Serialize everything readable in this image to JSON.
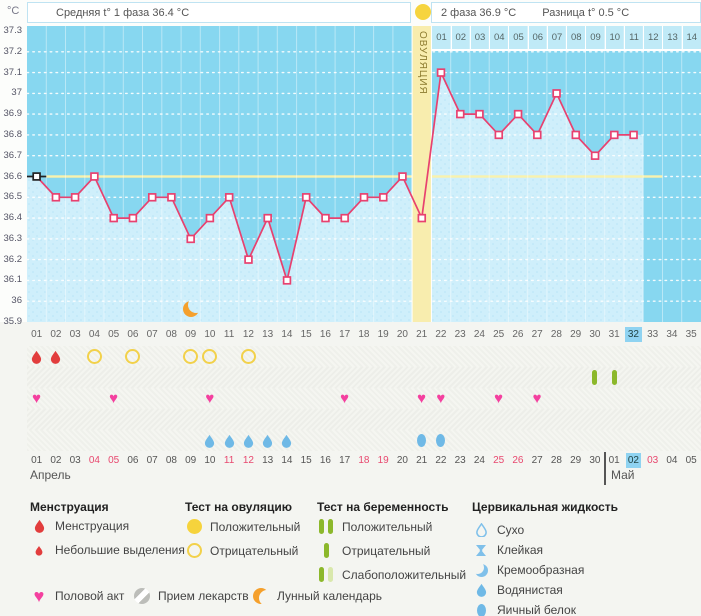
{
  "header": {
    "unit_label": "°C",
    "phase1_label": "Средняя t° 1 фаза 36.4 °C",
    "phase2_label": "2 фаза 36.9 °C",
    "difference_label": "Разница t° 0.5 °C"
  },
  "chart_data": {
    "type": "line",
    "x_day_labels": [
      "01",
      "02",
      "03",
      "04",
      "05",
      "06",
      "07",
      "08",
      "09",
      "10",
      "11",
      "12",
      "13",
      "14",
      "15",
      "16",
      "17",
      "18",
      "19",
      "20",
      "21",
      "22",
      "23",
      "24",
      "25",
      "26",
      "27",
      "28",
      "29",
      "30",
      "31",
      "32",
      "33",
      "34",
      "35"
    ],
    "values": [
      36.6,
      36.5,
      36.5,
      36.6,
      36.4,
      36.4,
      36.5,
      36.5,
      36.3,
      36.4,
      36.5,
      36.2,
      36.4,
      36.1,
      36.5,
      36.4,
      36.4,
      36.5,
      36.5,
      36.6,
      36.4,
      37.1,
      36.9,
      36.9,
      36.8,
      36.9,
      36.8,
      37.0,
      36.8,
      36.7,
      36.8,
      36.8,
      null,
      null,
      null
    ],
    "ylim": [
      35.9,
      37.3
    ],
    "y_tick_labels": [
      "37.3",
      "37.2",
      "37.1",
      "37",
      "36.9",
      "36.8",
      "36.7",
      "36.6",
      "36.5",
      "36.4",
      "36.3",
      "36.2",
      "36.1",
      "36",
      "35.9"
    ],
    "coverline_value": 36.6,
    "ovulation": {
      "day": 21,
      "label": "ОВУЛЯЦИЯ"
    },
    "phase2_start_day": 22,
    "phase2_day_labels": [
      "01",
      "02",
      "03",
      "04",
      "05",
      "06",
      "07",
      "08",
      "09",
      "10",
      "11",
      "12",
      "13",
      "14"
    ],
    "current_day": 32,
    "moon_day": 9,
    "grid": "dotted-white-horizontal",
    "legend_position": "bottom"
  },
  "marker_rows": {
    "menstruation_days": [
      1,
      2
    ],
    "ovulation_test_negative_days": [
      4,
      6,
      9,
      10,
      12
    ],
    "pregnancy_test_negative_days": [
      30,
      31
    ],
    "intercourse_days": [
      1,
      5,
      10,
      17,
      21,
      22,
      25,
      27
    ],
    "fluid_watery_days": [
      10,
      11,
      12,
      13,
      14
    ],
    "fluid_eggwhite_days": [
      21,
      22
    ]
  },
  "calendar": {
    "month1_label": "Апрель",
    "month2_label": "Май",
    "month2_start_day": 31,
    "dates": [
      "01",
      "02",
      "03",
      "04",
      "05",
      "06",
      "07",
      "08",
      "09",
      "10",
      "11",
      "12",
      "13",
      "14",
      "15",
      "16",
      "17",
      "18",
      "19",
      "20",
      "21",
      "22",
      "23",
      "24",
      "25",
      "26",
      "27",
      "28",
      "29",
      "30",
      "01",
      "02",
      "03",
      "04",
      "05"
    ],
    "weekend_day_indices": [
      4,
      5,
      11,
      12,
      18,
      19,
      25,
      26,
      33
    ],
    "today_day_index": 32
  },
  "legend": {
    "columns": [
      {
        "title": "Менструация",
        "x": 30,
        "items": [
          {
            "icon": "drop-red",
            "name": "menstruation-drop-icon",
            "label": "Менструация"
          },
          {
            "icon": "drop-red-small",
            "name": "spotting-drop-icon",
            "label": "Небольшие выделения"
          }
        ]
      },
      {
        "title": "Тест на овуляцию",
        "x": 185,
        "items": [
          {
            "icon": "circle-solid-yellow",
            "name": "ovulation-test-positive-icon",
            "label": "Положительный"
          },
          {
            "icon": "circle-outline-yellow",
            "name": "ovulation-test-negative-icon",
            "label": "Отрицательный"
          }
        ]
      },
      {
        "title": "Тест на беременность",
        "x": 317,
        "items": [
          {
            "icon": "bars-two-green",
            "name": "pregnancy-test-positive-icon",
            "label": "Положительный"
          },
          {
            "icon": "bar-one-green",
            "name": "pregnancy-test-negative-icon",
            "label": "Отрицательный"
          },
          {
            "icon": "bars-green-pale",
            "name": "pregnancy-test-weak-icon",
            "label": "Слабоположительный"
          }
        ]
      },
      {
        "title": "Цервикальная жидкость",
        "x": 472,
        "items": [
          {
            "icon": "drop-outline-blue",
            "name": "fluid-dry-icon",
            "label": "Сухо"
          },
          {
            "icon": "hourglass-blue",
            "name": "fluid-sticky-icon",
            "label": "Клейкая"
          },
          {
            "icon": "crescent-blue",
            "name": "fluid-creamy-icon",
            "label": "Кремообразная"
          },
          {
            "icon": "drop-solid-blue",
            "name": "fluid-watery-icon",
            "label": "Водянистая"
          },
          {
            "icon": "oval-blue",
            "name": "fluid-eggwhite-icon",
            "label": "Яичный белок"
          }
        ]
      }
    ],
    "bottom_items": [
      {
        "icon": "heart-pink",
        "name": "intercourse-heart-icon",
        "label": "Половой акт",
        "x": 30
      },
      {
        "icon": "pill-gray",
        "name": "medication-pill-icon",
        "label": "Прием лекарств",
        "x": 133
      },
      {
        "icon": "moon-orange",
        "name": "lunar-calendar-moon-icon",
        "label": "Лунный календарь",
        "x": 252
      }
    ]
  },
  "colors": {
    "plot_bg": "#87d7f0",
    "area_fill": "#cfeffb",
    "area_dots": "#b8e4f6",
    "line": "#e8416f",
    "first_marker": "#222222",
    "coverline": "#f9f2ad",
    "ovulation_column": "#f8edae",
    "ovulation_text": "#8c7b2f",
    "highlight_day": "#8fd3f1",
    "weekend_date": "#e8486f",
    "menstruation": "#e23d3d",
    "ovulation_test": "#f2d14a",
    "pregnancy_test": "#8cb82b",
    "fluid": "#6fb9e6",
    "heart": "#f4409f",
    "moon": "#f5a02c",
    "pill": "#bcbdb9"
  }
}
